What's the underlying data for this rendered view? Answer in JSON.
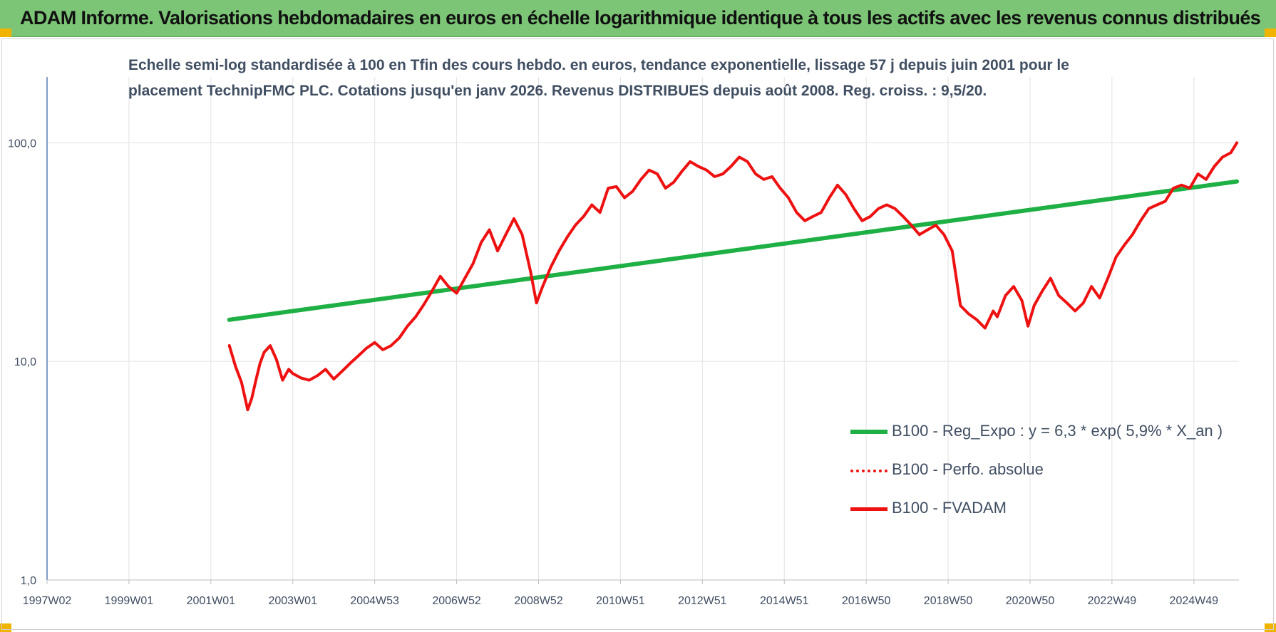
{
  "banner": {
    "title": "ADAM Informe. Valorisations hebdomadaires en euros en échelle logarithmique identique à tous les actifs avec les revenus connus distribués"
  },
  "colors": {
    "banner_bg": "#7cc576",
    "regression": "#1fb045",
    "fvadam": "#ee1111",
    "perfo": "#ee1111",
    "axis_text": "#404e62",
    "grid": "#e2e2e2"
  },
  "chart_data": {
    "type": "line",
    "title_lines": [
      "Echelle semi-log standardisée à 100 en Tfin des cours hebdo. en euros, tendance exponentielle, lissage 57 j depuis juin 2001 pour le",
      "placement TechnipFMC PLC. Cotations jusqu'en janv 2026. Revenus DISTRIBUES depuis août 2008. Reg. croiss. : 9,5/20."
    ],
    "y_scale": "log",
    "ylim": [
      1,
      200
    ],
    "y_ticks": [
      {
        "value": 1,
        "label": "1,0"
      },
      {
        "value": 10,
        "label": "10,0"
      },
      {
        "value": 100,
        "label": "100,0"
      }
    ],
    "xlim": [
      1997.0,
      2026.1
    ],
    "x_ticks": [
      {
        "value": 1997.0,
        "label": "1997W02"
      },
      {
        "value": 1999.0,
        "label": "1999W01"
      },
      {
        "value": 2001.0,
        "label": "2001W01"
      },
      {
        "value": 2003.0,
        "label": "2003W01"
      },
      {
        "value": 2005.0,
        "label": "2004W53"
      },
      {
        "value": 2007.0,
        "label": "2006W52"
      },
      {
        "value": 2009.0,
        "label": "2008W52"
      },
      {
        "value": 2011.0,
        "label": "2010W51"
      },
      {
        "value": 2013.0,
        "label": "2012W51"
      },
      {
        "value": 2015.0,
        "label": "2014W51"
      },
      {
        "value": 2017.0,
        "label": "2016W50"
      },
      {
        "value": 2019.0,
        "label": "2018W50"
      },
      {
        "value": 2021.0,
        "label": "2020W50"
      },
      {
        "value": 2023.0,
        "label": "2022W49"
      },
      {
        "value": 2025.0,
        "label": "2024W49"
      }
    ],
    "grid": true,
    "legend_position": "bottom-right",
    "series": [
      {
        "name": "B100 - Reg_Expo : y = 6,3 * exp( 5,9% *  X_an )",
        "style": "solid-thick",
        "color": "#1fb045",
        "x": [
          2001.45,
          2026.05
        ],
        "y": [
          15.5,
          66.5
        ]
      },
      {
        "name": "B100 - Perfo. absolue",
        "style": "dotted",
        "color": "#ee1111",
        "x": [],
        "y": []
      },
      {
        "name": "B100 - FVADAM",
        "style": "solid",
        "color": "#ee1111",
        "x": [
          2001.45,
          2001.6,
          2001.75,
          2001.9,
          2002.0,
          2002.1,
          2002.2,
          2002.3,
          2002.45,
          2002.6,
          2002.75,
          2002.9,
          2003.0,
          2003.2,
          2003.4,
          2003.6,
          2003.8,
          2004.0,
          2004.2,
          2004.4,
          2004.6,
          2004.8,
          2005.0,
          2005.2,
          2005.4,
          2005.6,
          2005.8,
          2006.0,
          2006.2,
          2006.4,
          2006.6,
          2006.8,
          2007.0,
          2007.2,
          2007.4,
          2007.6,
          2007.8,
          2008.0,
          2008.2,
          2008.4,
          2008.6,
          2008.8,
          2008.95,
          2009.1,
          2009.3,
          2009.5,
          2009.7,
          2009.9,
          2010.1,
          2010.3,
          2010.5,
          2010.7,
          2010.9,
          2011.1,
          2011.3,
          2011.5,
          2011.7,
          2011.9,
          2012.1,
          2012.3,
          2012.5,
          2012.7,
          2012.9,
          2013.1,
          2013.3,
          2013.5,
          2013.7,
          2013.9,
          2014.1,
          2014.3,
          2014.5,
          2014.7,
          2014.9,
          2015.1,
          2015.3,
          2015.5,
          2015.7,
          2015.9,
          2016.1,
          2016.3,
          2016.5,
          2016.7,
          2016.9,
          2017.1,
          2017.3,
          2017.5,
          2017.7,
          2017.9,
          2018.1,
          2018.3,
          2018.5,
          2018.7,
          2018.9,
          2019.1,
          2019.3,
          2019.5,
          2019.7,
          2019.9,
          2020.1,
          2020.2,
          2020.4,
          2020.6,
          2020.8,
          2020.95,
          2021.1,
          2021.3,
          2021.5,
          2021.7,
          2021.9,
          2022.1,
          2022.3,
          2022.5,
          2022.7,
          2022.9,
          2023.1,
          2023.3,
          2023.5,
          2023.7,
          2023.9,
          2024.1,
          2024.3,
          2024.5,
          2024.7,
          2024.9,
          2025.1,
          2025.3,
          2025.5,
          2025.7,
          2025.9,
          2026.05
        ],
        "y": [
          11.8,
          9.5,
          8.0,
          6.0,
          6.8,
          8.2,
          9.8,
          11.0,
          11.8,
          10.2,
          8.2,
          9.2,
          8.8,
          8.4,
          8.2,
          8.6,
          9.2,
          8.3,
          9.0,
          9.8,
          10.6,
          11.5,
          12.2,
          11.3,
          11.8,
          12.8,
          14.5,
          16.0,
          18.2,
          21.0,
          24.5,
          22.0,
          20.5,
          24.0,
          28.0,
          35.0,
          40.0,
          32.0,
          38.0,
          45.0,
          38.0,
          26.0,
          18.5,
          22.0,
          27.0,
          32.0,
          37.0,
          42.0,
          46.0,
          52.0,
          48.0,
          62.0,
          63.0,
          56.0,
          60.0,
          68.0,
          75.0,
          72.0,
          62.0,
          66.0,
          74.0,
          82.0,
          78.0,
          75.0,
          70.0,
          72.0,
          78.0,
          86.0,
          82.0,
          72.0,
          68.0,
          70.0,
          62.0,
          56.0,
          48.0,
          44.0,
          46.0,
          48.0,
          56.0,
          64.0,
          58.0,
          50.0,
          44.0,
          46.0,
          50.0,
          52.0,
          50.0,
          46.0,
          42.0,
          38.0,
          40.0,
          42.0,
          38.0,
          32.0,
          18.0,
          16.5,
          15.5,
          14.2,
          17.0,
          16.0,
          20.0,
          22.0,
          19.0,
          14.5,
          18.0,
          21.0,
          24.0,
          20.0,
          18.5,
          17.0,
          18.5,
          22.0,
          19.5,
          24.0,
          30.0,
          34.0,
          38.0,
          44.0,
          50.0,
          52.0,
          54.0,
          62.0,
          64.0,
          62.0,
          72.0,
          68.0,
          78.0,
          86.0,
          90.0,
          100.0
        ]
      }
    ]
  }
}
